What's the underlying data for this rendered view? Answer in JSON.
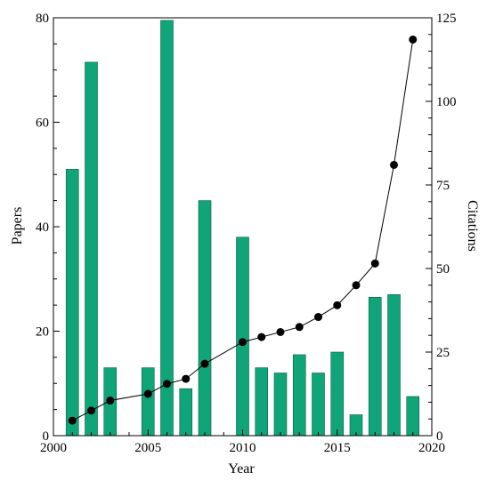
{
  "chart_data": {
    "type": "bar",
    "title": "",
    "xlabel": "Year",
    "ylabel": "Papers",
    "y2label": "Citations",
    "xlim": [
      2000,
      2020
    ],
    "ylim": [
      0,
      80
    ],
    "y2lim": [
      0,
      125
    ],
    "xticks": [
      2000,
      2005,
      2010,
      2015,
      2020
    ],
    "yticks": [
      0,
      20,
      40,
      60,
      80
    ],
    "y2ticks": [
      0,
      25,
      50,
      75,
      100,
      125
    ],
    "grid": false,
    "series": [
      {
        "kind": "bar",
        "axis": "left",
        "color": "#10a579",
        "x": [
          2001,
          2002,
          2003,
          2005,
          2006,
          2007,
          2008,
          2010,
          2011,
          2012,
          2013,
          2014,
          2015,
          2016,
          2017,
          2018,
          2019
        ],
        "values": [
          51,
          71.5,
          13,
          13,
          79.5,
          9,
          45,
          38,
          13,
          12,
          15.5,
          12,
          16,
          4,
          26.5,
          27,
          7.5
        ]
      },
      {
        "kind": "line",
        "axis": "right",
        "color": "#000000",
        "x": [
          2001,
          2002,
          2003,
          2005,
          2006,
          2007,
          2008,
          2010,
          2011,
          2012,
          2013,
          2014,
          2015,
          2016,
          2017,
          2018,
          2019
        ],
        "values": [
          4.5,
          7.5,
          10.5,
          12.5,
          15.5,
          17,
          21.5,
          28,
          29.5,
          31,
          32.5,
          35.5,
          39,
          45,
          51.5,
          81,
          118.5
        ]
      }
    ]
  }
}
